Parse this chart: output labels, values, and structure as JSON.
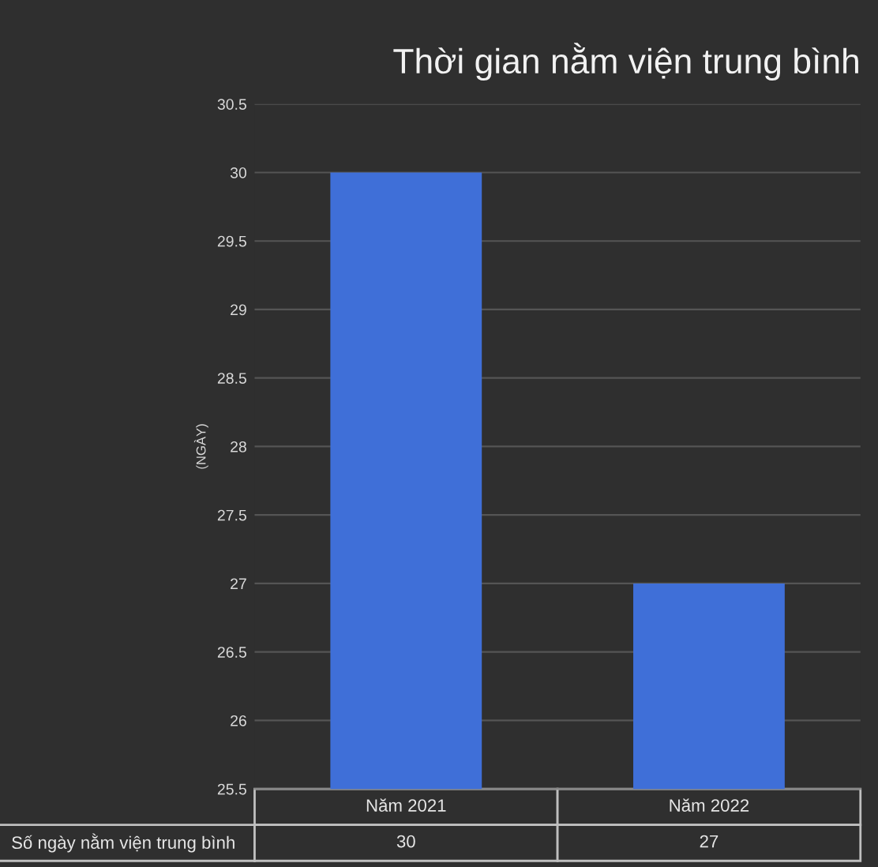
{
  "chart_data": {
    "type": "bar",
    "title": "Thời gian nằm viện trung bình",
    "ylabel": "(NGÀY)",
    "categories": [
      "Năm 2021",
      "Năm 2022"
    ],
    "series": [
      {
        "name": "Số ngày nằm viện trung bình",
        "color": "#3f6fd8",
        "values": [
          30,
          27
        ]
      }
    ],
    "ylim": [
      25.5,
      30.5
    ],
    "yticks": [
      25.5,
      26,
      26.5,
      27,
      27.5,
      28,
      28.5,
      29,
      29.5,
      30,
      30.5
    ],
    "grid": "y",
    "data_labels": true
  }
}
